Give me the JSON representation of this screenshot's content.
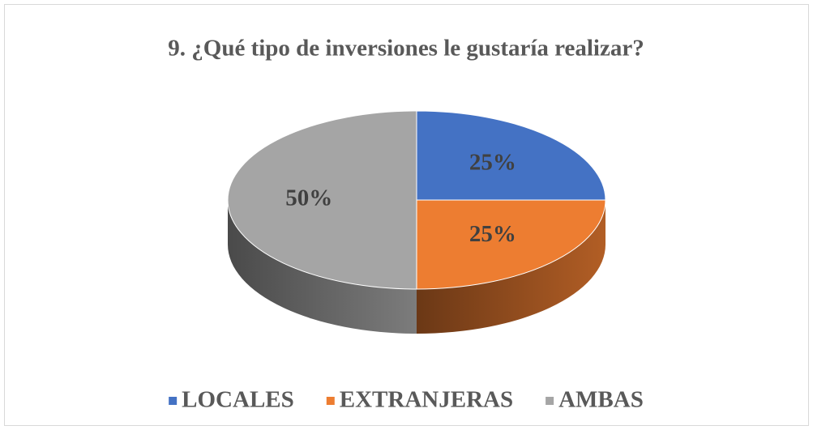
{
  "chart_data": {
    "type": "pie3d",
    "title": "9. ¿Qué tipo de inversiones le gustaría realizar?",
    "categories": [
      "LOCALES",
      "EXTRANJERAS",
      "AMBAS"
    ],
    "values": [
      25,
      25,
      50
    ],
    "value_labels": [
      "25%",
      "25%",
      "50%"
    ],
    "colors": [
      "#4472c4",
      "#ed7d31",
      "#a5a5a5"
    ],
    "legend": "bottom"
  }
}
